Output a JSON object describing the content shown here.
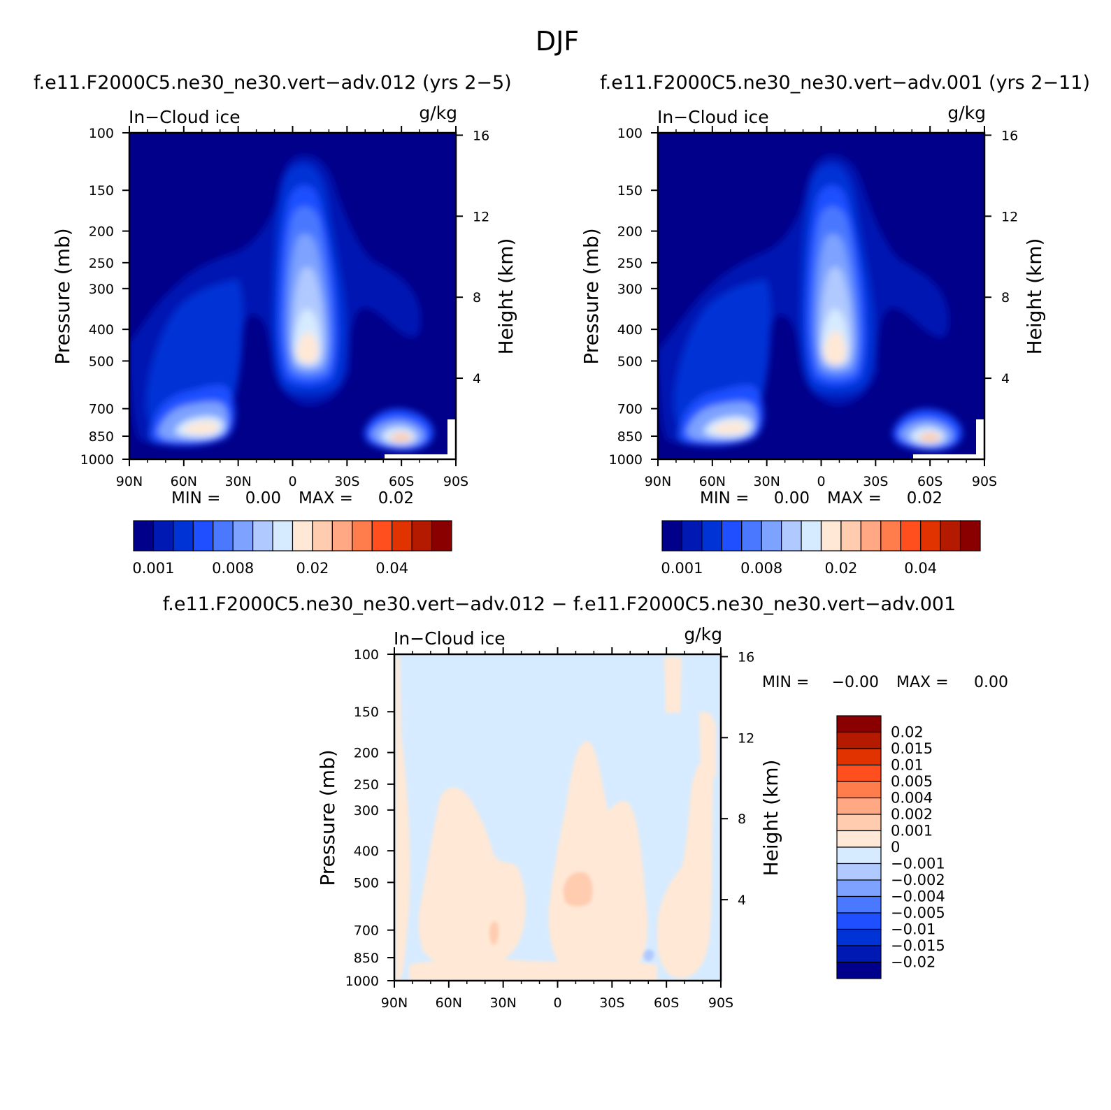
{
  "figure": {
    "title": "DJF"
  },
  "colors": {
    "positive_scale": [
      "#00008a",
      "#0019b3",
      "#0033d6",
      "#1f4fff",
      "#4a78ff",
      "#7da2ff",
      "#b0c9ff",
      "#d6ebff",
      "#ffe8d6",
      "#ffccb0",
      "#ffa883",
      "#ff7d4d",
      "#ff4f1f",
      "#e03300",
      "#b31a00",
      "#8a0000"
    ],
    "diff_scale": [
      "#8a0000",
      "#b31a00",
      "#e03300",
      "#ff4f1f",
      "#ff7d4d",
      "#ffa883",
      "#ffccb0",
      "#ffe8d6",
      "#d6ebff",
      "#b0c9ff",
      "#7da2ff",
      "#4a78ff",
      "#1f4fff",
      "#0033d6",
      "#0019b3",
      "#00008a"
    ]
  },
  "chart_data": [
    {
      "type": "heatmap",
      "id": "panel-a",
      "title": "f.e11.F2000C5.ne30_ne30.vert-adv.012 (yrs 2-5)",
      "title_display": "f.e11.F2000C5.ne30_ne30.vert−adv.012 (yrs 2−5)",
      "variable": "In−Cloud ice",
      "units": "g/kg",
      "xlabel": "",
      "ylabel": "Pressure (mb)",
      "ylabel_right": "Height (km)",
      "x_ticks": [
        "90N",
        "60N",
        "30N",
        "0",
        "30S",
        "60S",
        "90S"
      ],
      "y_ticks": [
        "100",
        "150",
        "200",
        "250",
        "300",
        "400",
        "500",
        "700",
        "850",
        "1000"
      ],
      "height_ticks": [
        "16",
        "12",
        "8",
        "4"
      ],
      "ylim": [
        1000,
        100
      ],
      "min_text": "MIN =",
      "min_value": "0.00",
      "max_text": "MAX =",
      "max_value": "0.02",
      "colorbar_labels": [
        "0.001",
        "0.008",
        "0.02",
        "0.04"
      ],
      "features": [
        {
          "name": "tropical-max",
          "lat": -8,
          "p": 500,
          "value": 0.02
        },
        {
          "name": "nh-lowlevel",
          "lat": 50,
          "p": 820,
          "value": 0.02
        },
        {
          "name": "sh-lowlevel",
          "lat": -63,
          "p": 850,
          "value": 0.02
        }
      ]
    },
    {
      "type": "heatmap",
      "id": "panel-b",
      "title": "f.e11.F2000C5.ne30_ne30.vert-adv.001 (yrs 2-11)",
      "title_display": "f.e11.F2000C5.ne30_ne30.vert−adv.001 (yrs 2−11)",
      "variable": "In−Cloud ice",
      "units": "g/kg",
      "xlabel": "",
      "ylabel": "Pressure (mb)",
      "ylabel_right": "Height (km)",
      "x_ticks": [
        "90N",
        "60N",
        "30N",
        "0",
        "30S",
        "60S",
        "90S"
      ],
      "y_ticks": [
        "100",
        "150",
        "200",
        "250",
        "300",
        "400",
        "500",
        "700",
        "850",
        "1000"
      ],
      "height_ticks": [
        "16",
        "12",
        "8",
        "4"
      ],
      "ylim": [
        1000,
        100
      ],
      "min_text": "MIN =",
      "min_value": "0.00",
      "max_text": "MAX =",
      "max_value": "0.02",
      "colorbar_labels": [
        "0.001",
        "0.008",
        "0.02",
        "0.04"
      ],
      "features": [
        {
          "name": "tropical-max",
          "lat": -5,
          "p": 500,
          "value": 0.02
        },
        {
          "name": "nh-lowlevel",
          "lat": 50,
          "p": 820,
          "value": 0.02
        },
        {
          "name": "sh-lowlevel",
          "lat": -60,
          "p": 850,
          "value": 0.02
        }
      ]
    },
    {
      "type": "heatmap",
      "id": "panel-diff",
      "title": "f.e11.F2000C5.ne30_ne30.vert-adv.012 - f.e11.F2000C5.ne30_ne30.vert-adv.001",
      "title_display": "f.e11.F2000C5.ne30_ne30.vert−adv.012 − f.e11.F2000C5.ne30_ne30.vert−adv.001",
      "variable": "In−Cloud ice",
      "units": "g/kg",
      "xlabel": "",
      "ylabel": "Pressure (mb)",
      "ylabel_right": "Height (km)",
      "x_ticks": [
        "90N",
        "60N",
        "30N",
        "0",
        "30S",
        "60S",
        "90S"
      ],
      "y_ticks": [
        "100",
        "150",
        "200",
        "250",
        "300",
        "400",
        "500",
        "700",
        "850",
        "1000"
      ],
      "height_ticks": [
        "16",
        "12",
        "8",
        "4"
      ],
      "ylim": [
        1000,
        100
      ],
      "min_text": "MIN =",
      "min_value": "−0.00",
      "max_text": "MAX =",
      "max_value": "0.00",
      "colorbar_labels": [
        "0.02",
        "0.015",
        "0.01",
        "0.005",
        "0.004",
        "0.002",
        "0.001",
        "0",
        "−0.001",
        "−0.002",
        "−0.004",
        "−0.005",
        "−0.01",
        "−0.015",
        "−0.02"
      ]
    }
  ]
}
